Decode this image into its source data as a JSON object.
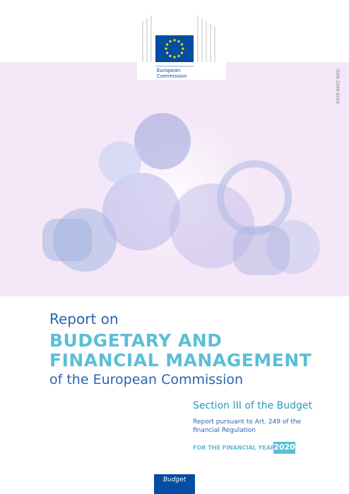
{
  "logo": {
    "line1": "European",
    "line2": "Commission"
  },
  "issn": "ISSN 2599-6XXX",
  "title": {
    "intro": "Report on",
    "line1": "BUDGETARY AND",
    "line2": "FINANCIAL MANAGEMENT",
    "outro": "of the European Commission"
  },
  "section": "Section III of the Budget",
  "subtitle": {
    "line1": "Report pursuant to Art. 249 of the",
    "line2": "financial Regulation"
  },
  "year_label": "FOR THE FINANCIAL YEAR",
  "year": "2020",
  "footer_tab": "Budget"
}
